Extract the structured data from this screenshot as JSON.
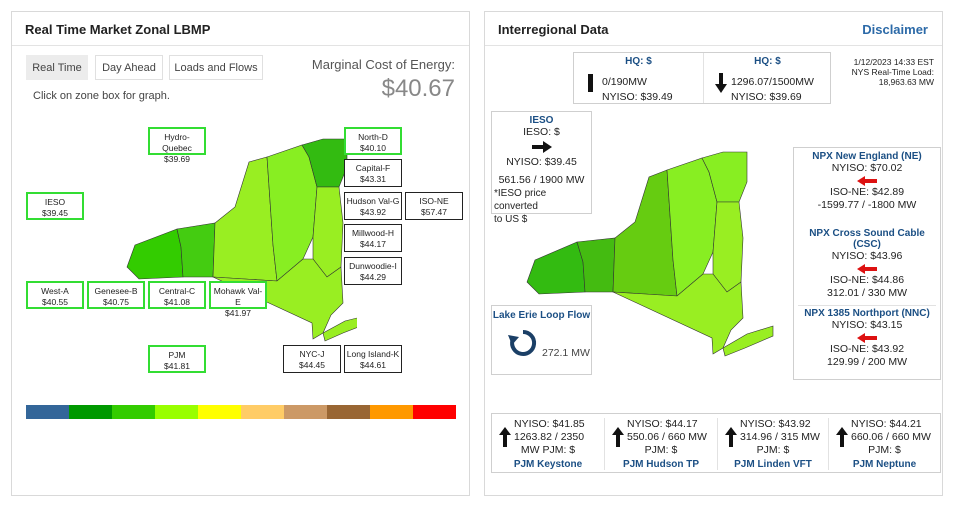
{
  "left": {
    "title": "Real Time Market Zonal LBMP",
    "tabs": [
      "Real Time",
      "Day Ahead",
      "Loads and Flows"
    ],
    "hint": "Click on zone box for graph.",
    "mce_label": "Marginal Cost of Energy:",
    "mce_value": "$40.67",
    "zones": {
      "hydro_quebec": {
        "name": "Hydro-Quebec",
        "price": "$39.69"
      },
      "north": {
        "name": "North-D",
        "price": "$40.10"
      },
      "capital": {
        "name": "Capital-F",
        "price": "$43.31"
      },
      "hudson": {
        "name": "Hudson Val-G",
        "price": "$43.92"
      },
      "iso_ne": {
        "name": "ISO-NE",
        "price": "$57.47"
      },
      "millwood": {
        "name": "Millwood-H",
        "price": "$44.17"
      },
      "dunwoodie": {
        "name": "Dunwoodie-I",
        "price": "$44.29"
      },
      "ieso": {
        "name": "IESO",
        "price": "$39.45"
      },
      "west": {
        "name": "West-A",
        "price": "$40.55"
      },
      "genesee": {
        "name": "Genesee-B",
        "price": "$40.75"
      },
      "central": {
        "name": "Central-C",
        "price": "$41.08"
      },
      "mohawk": {
        "name": "Mohawk Val-E",
        "price": "$41.97"
      },
      "pjm": {
        "name": "PJM",
        "price": "$41.81"
      },
      "nyc": {
        "name": "NYC-J",
        "price": "$44.45"
      },
      "long_island": {
        "name": "Long Island-K",
        "price": "$44.61"
      }
    },
    "legend_colors": [
      "#336699",
      "#009900",
      "#33cc00",
      "#99ff00",
      "#ffff00",
      "#ffcc66",
      "#cc9966",
      "#996633",
      "#ff9900",
      "#ff0000"
    ]
  },
  "right": {
    "title": "Interregional Data",
    "disclaimer": "Disclaimer",
    "hq1": {
      "title": "HQ: $",
      "flow": "0/190MW",
      "price": "NYISO: $39.49"
    },
    "hq2": {
      "title": "HQ: $",
      "flow": "1296.07/1500MW",
      "price": "NYISO: $39.69"
    },
    "timestamp": "1/12/2023 14:33 EST",
    "load_label": "NYS Real-Time Load:",
    "load_value": "18,963.63 MW",
    "ieso": {
      "title": "IESO",
      "price": "IESO: $",
      "nyiso": "NYISO: $39.45",
      "flow": "561.56 / 1900 MW",
      "note1": "*IESO price converted",
      "note2": "to US $"
    },
    "lake": {
      "title": "Lake Erie Loop Flow",
      "value": "272.1 MW"
    },
    "npx": [
      {
        "name": "NPX New England (NE)",
        "nyiso": "NYISO: $70.02",
        "isone": "ISO-NE: $42.89",
        "flow": "-1599.77 / -1800 MW"
      },
      {
        "name": "NPX Cross Sound Cable (CSC)",
        "nyiso": "NYISO: $43.96",
        "isone": "ISO-NE: $44.86",
        "flow": "312.01 / 330 MW"
      },
      {
        "name": "NPX 1385 Northport (NNC)",
        "nyiso": "NYISO: $43.15",
        "isone": "ISO-NE: $43.92",
        "flow": "129.99 / 200 MW"
      }
    ],
    "pjm": [
      {
        "nyiso": "NYISO: $41.85",
        "flow": "1263.82 / 2350",
        "pjm": "MW PJM: $",
        "name": "PJM Keystone"
      },
      {
        "nyiso": "NYISO: $44.17",
        "flow": "550.06 / 660 MW",
        "pjm": "PJM: $",
        "name": "PJM Hudson TP"
      },
      {
        "nyiso": "NYISO: $43.92",
        "flow": "314.96 / 315 MW",
        "pjm": "PJM: $",
        "name": "PJM Linden VFT"
      },
      {
        "nyiso": "NYISO: $44.21",
        "flow": "660.06 / 660 MW",
        "pjm": "PJM: $",
        "name": "PJM Neptune"
      }
    ]
  }
}
